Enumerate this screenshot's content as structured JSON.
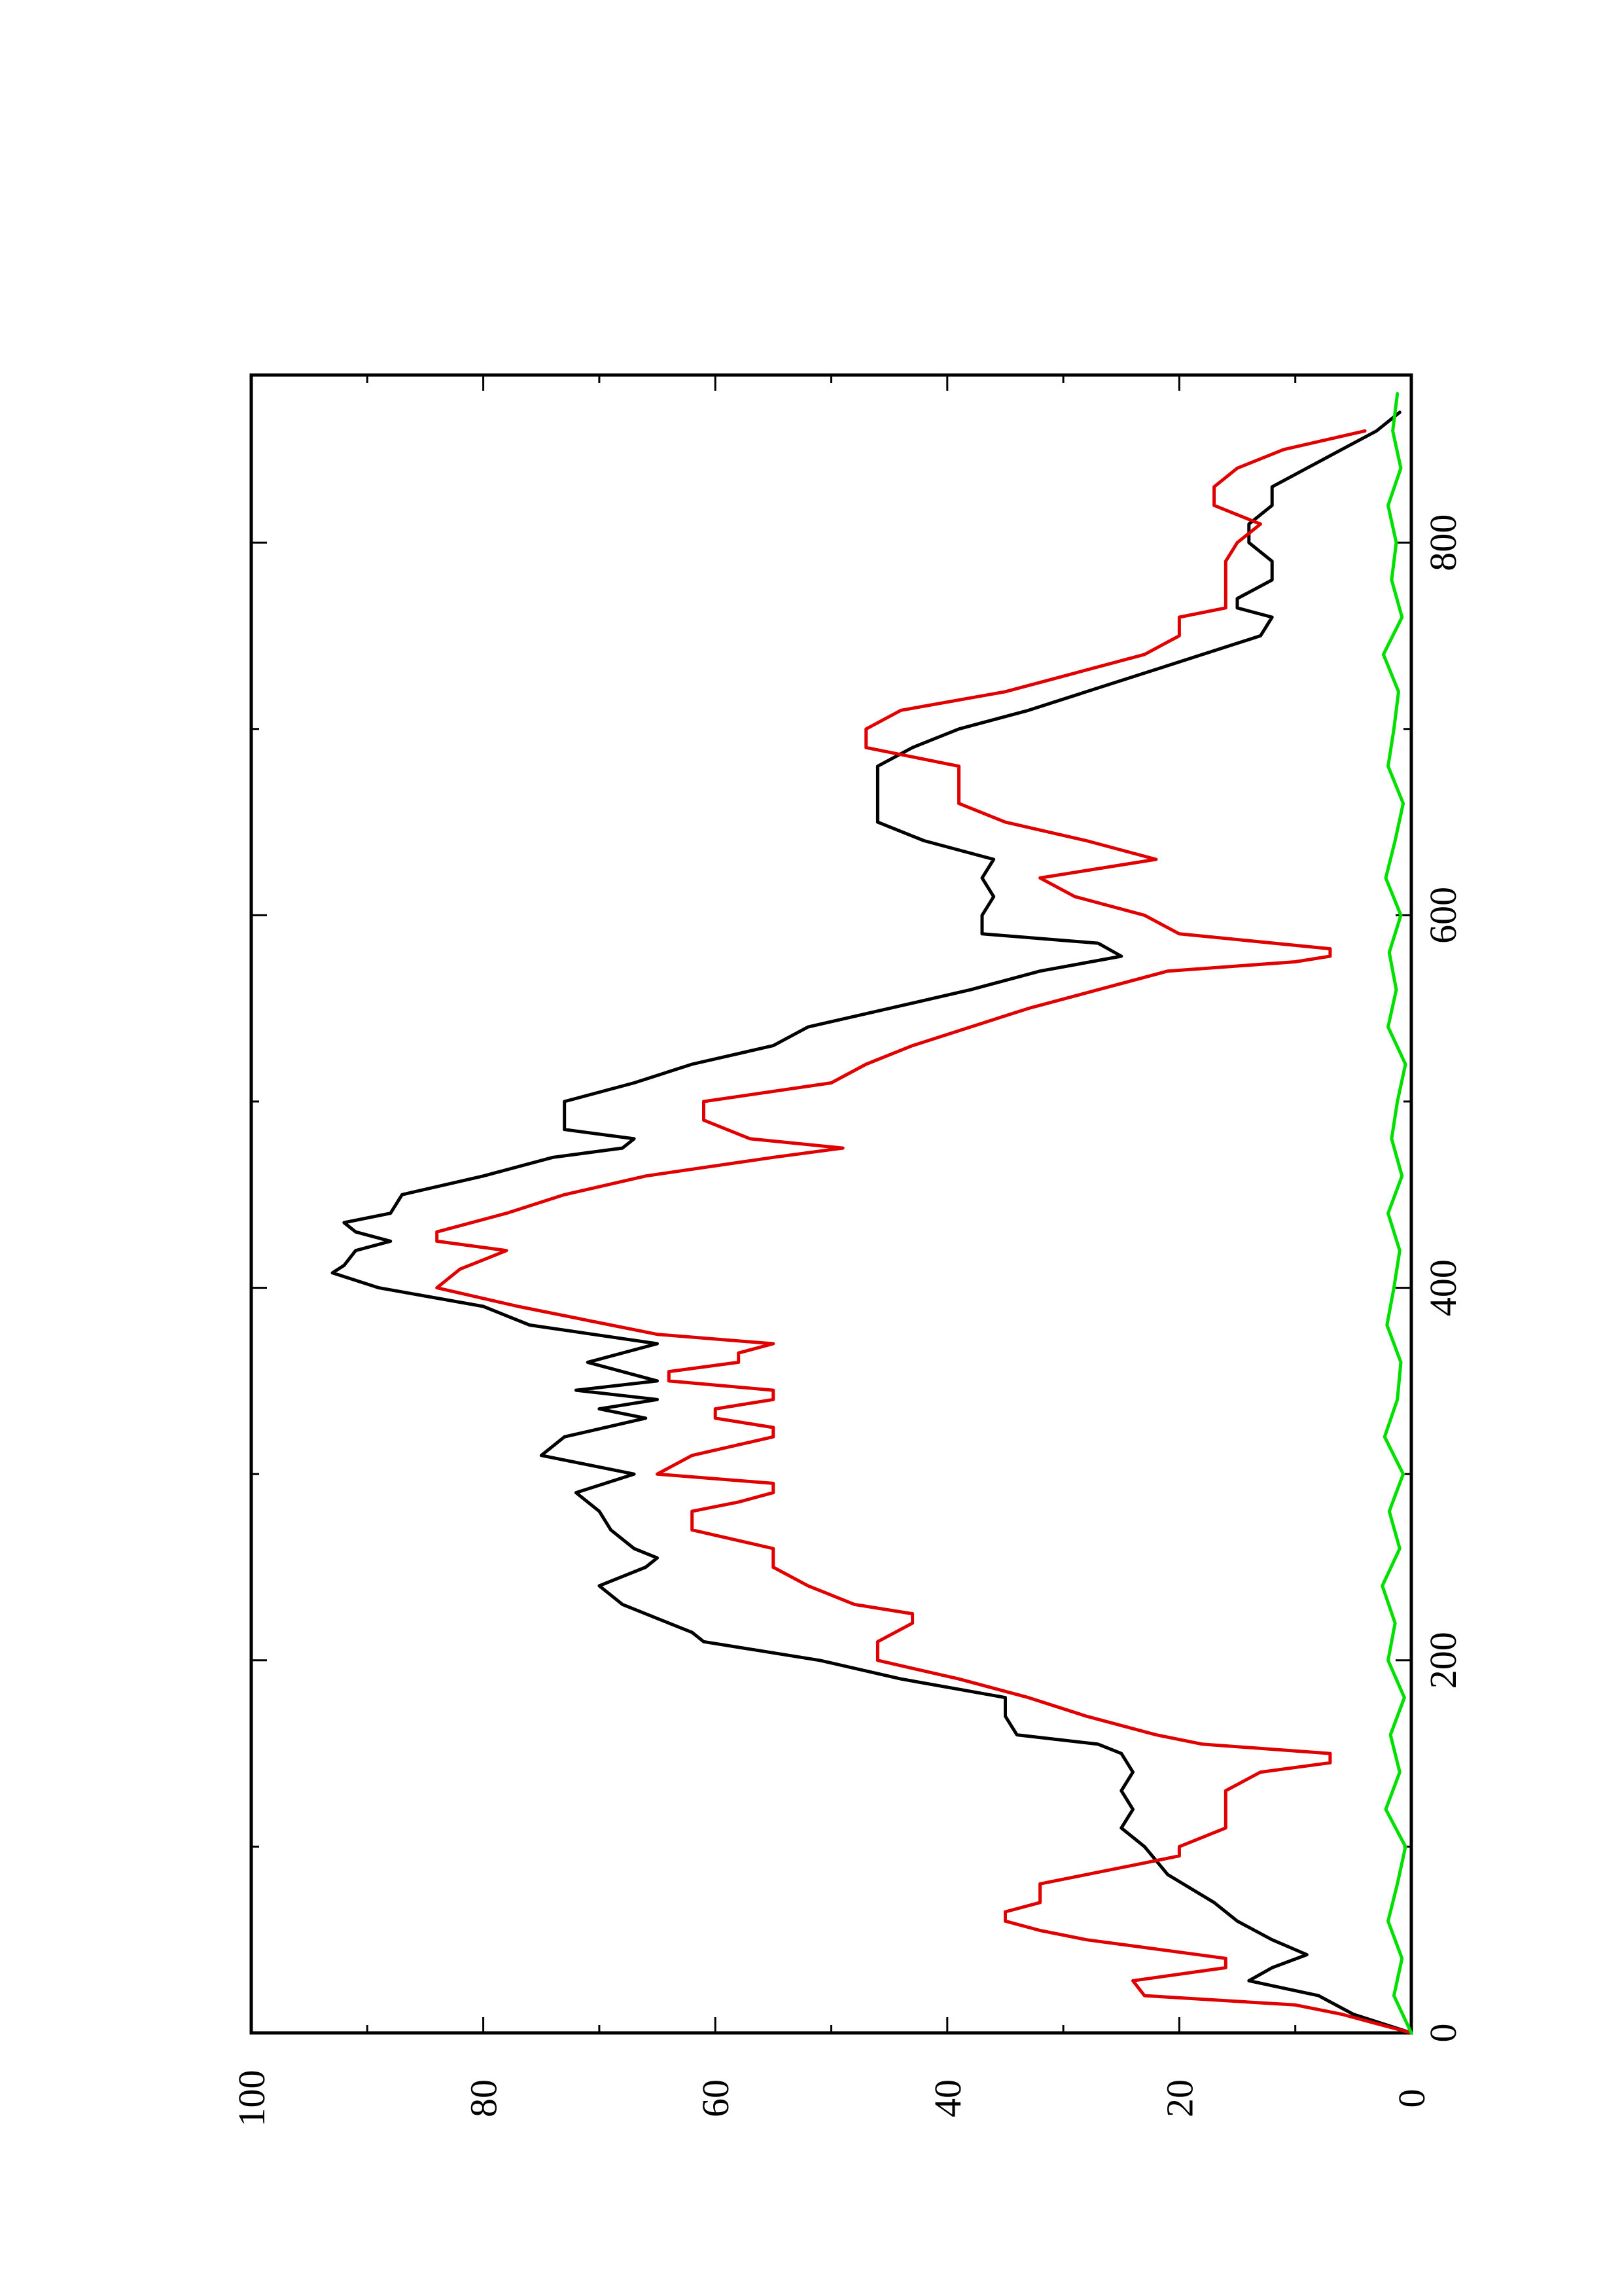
{
  "chart_data": {
    "type": "line",
    "title": "",
    "xlabel": "",
    "ylabel": "",
    "rotation": "page rotated 90 degrees counter-clockwise (landscape plot on portrait page)",
    "xlim": [
      0,
      890
    ],
    "ylim": [
      0,
      100
    ],
    "x_ticks": [
      0,
      200,
      400,
      600,
      800
    ],
    "x_minor_ticks": [
      100,
      300,
      500,
      700
    ],
    "y_ticks": [
      0,
      20,
      40,
      60,
      80,
      100
    ],
    "y_minor_ticks": [
      10,
      30,
      50,
      70,
      90
    ],
    "grid": false,
    "legend": "none",
    "colors": {
      "black_series": "#000000",
      "red_series": "#e00000",
      "green_series": "#00e000"
    },
    "series": [
      {
        "color": "black",
        "x": [
          0,
          10,
          20,
          28,
          35,
          42,
          50,
          60,
          70,
          85,
          100,
          110,
          120,
          130,
          140,
          150,
          155,
          160,
          170,
          180,
          190,
          200,
          210,
          215,
          220,
          230,
          240,
          250,
          255,
          260,
          270,
          280,
          290,
          300,
          310,
          320,
          330,
          335,
          340,
          345,
          350,
          360,
          370,
          380,
          390,
          400,
          408,
          412,
          420,
          425,
          430,
          435,
          440,
          450,
          460,
          470,
          475,
          480,
          485,
          490,
          500,
          510,
          520,
          530,
          540,
          550,
          560,
          570,
          578,
          585,
          590,
          600,
          610,
          620,
          630,
          640,
          650,
          660,
          670,
          680,
          690,
          700,
          710,
          720,
          730,
          740,
          750,
          760,
          765,
          770,
          780,
          790,
          800,
          810,
          820,
          830,
          840,
          850,
          860,
          870
        ],
        "y": [
          0,
          5,
          8,
          14,
          12,
          9,
          12,
          15,
          17,
          21,
          23,
          25,
          24,
          25,
          24,
          25,
          27,
          34,
          35,
          35,
          44,
          51,
          61,
          62,
          64,
          68,
          70,
          66,
          65,
          67,
          69,
          70,
          72,
          67,
          75,
          73,
          66,
          70,
          65,
          72,
          65,
          71,
          65,
          76,
          80,
          89,
          93,
          92,
          91,
          88,
          91,
          92,
          88,
          87,
          80,
          74,
          68,
          67,
          73,
          73,
          73,
          67,
          62,
          55,
          52,
          45,
          38,
          32,
          25,
          27,
          37,
          37,
          36,
          37,
          36,
          42,
          46,
          46,
          46,
          46,
          43,
          39,
          33,
          28,
          23,
          18,
          13,
          12,
          15,
          15,
          12,
          12,
          14,
          14,
          12,
          12,
          9,
          6,
          3,
          1
        ]
      },
      {
        "color": "red",
        "x": [
          0,
          5,
          10,
          15,
          20,
          28,
          35,
          40,
          45,
          50,
          55,
          60,
          65,
          70,
          75,
          80,
          85,
          90,
          95,
          100,
          110,
          120,
          130,
          140,
          145,
          148,
          150,
          155,
          160,
          170,
          180,
          190,
          200,
          210,
          220,
          225,
          230,
          240,
          250,
          260,
          270,
          280,
          285,
          290,
          295,
          300,
          310,
          320,
          325,
          330,
          335,
          340,
          345,
          350,
          355,
          360,
          365,
          370,
          375,
          380,
          390,
          400,
          410,
          415,
          420,
          425,
          430,
          440,
          450,
          460,
          470,
          475,
          480,
          490,
          500,
          510,
          520,
          530,
          540,
          550,
          560,
          570,
          575,
          578,
          582,
          590,
          600,
          610,
          620,
          630,
          640,
          650,
          660,
          670,
          680,
          690,
          700,
          710,
          720,
          730,
          740,
          750,
          760,
          765,
          770,
          780,
          790,
          800,
          810,
          820,
          830,
          840,
          850,
          860
        ],
        "y": [
          0,
          3,
          6,
          10,
          23,
          24,
          16,
          16,
          22,
          28,
          32,
          35,
          35,
          32,
          32,
          32,
          28,
          24,
          20,
          20,
          16,
          16,
          16,
          13,
          7,
          7,
          7,
          18,
          22,
          28,
          33,
          39,
          46,
          46,
          43,
          43,
          48,
          52,
          55,
          55,
          62,
          62,
          58,
          55,
          55,
          65,
          62,
          55,
          55,
          60,
          60,
          55,
          55,
          64,
          64,
          58,
          58,
          55,
          65,
          69,
          77,
          84,
          82,
          80,
          78,
          84,
          84,
          78,
          73,
          66,
          55,
          49,
          57,
          61,
          61,
          50,
          47,
          43,
          38,
          33,
          27,
          21,
          10,
          7,
          7,
          20,
          23,
          29,
          32,
          22,
          28,
          35,
          39,
          39,
          39,
          47,
          47,
          44,
          35,
          29,
          23,
          20,
          20,
          16,
          16,
          16,
          16,
          15,
          13,
          17,
          17,
          15,
          11,
          4
        ]
      },
      {
        "color": "green",
        "x": [
          0,
          20,
          40,
          60,
          80,
          100,
          120,
          140,
          160,
          180,
          200,
          220,
          240,
          260,
          280,
          300,
          320,
          340,
          360,
          380,
          400,
          420,
          440,
          460,
          480,
          500,
          520,
          540,
          560,
          580,
          600,
          620,
          640,
          660,
          680,
          700,
          720,
          740,
          760,
          780,
          800,
          820,
          840,
          860,
          880
        ],
        "y": [
          0,
          1.5,
          0.8,
          2.0,
          1.2,
          0.5,
          2.2,
          1.0,
          1.8,
          0.6,
          2.0,
          1.4,
          2.5,
          1.0,
          1.9,
          0.7,
          2.3,
          1.2,
          0.9,
          2.1,
          1.5,
          1.0,
          2.0,
          0.8,
          1.7,
          1.2,
          0.5,
          2.0,
          1.3,
          1.9,
          0.9,
          2.2,
          1.4,
          0.7,
          2.0,
          1.5,
          1.1,
          2.4,
          0.8,
          1.7,
          1.3,
          2.0,
          0.9,
          1.6,
          1.2
        ]
      }
    ]
  }
}
